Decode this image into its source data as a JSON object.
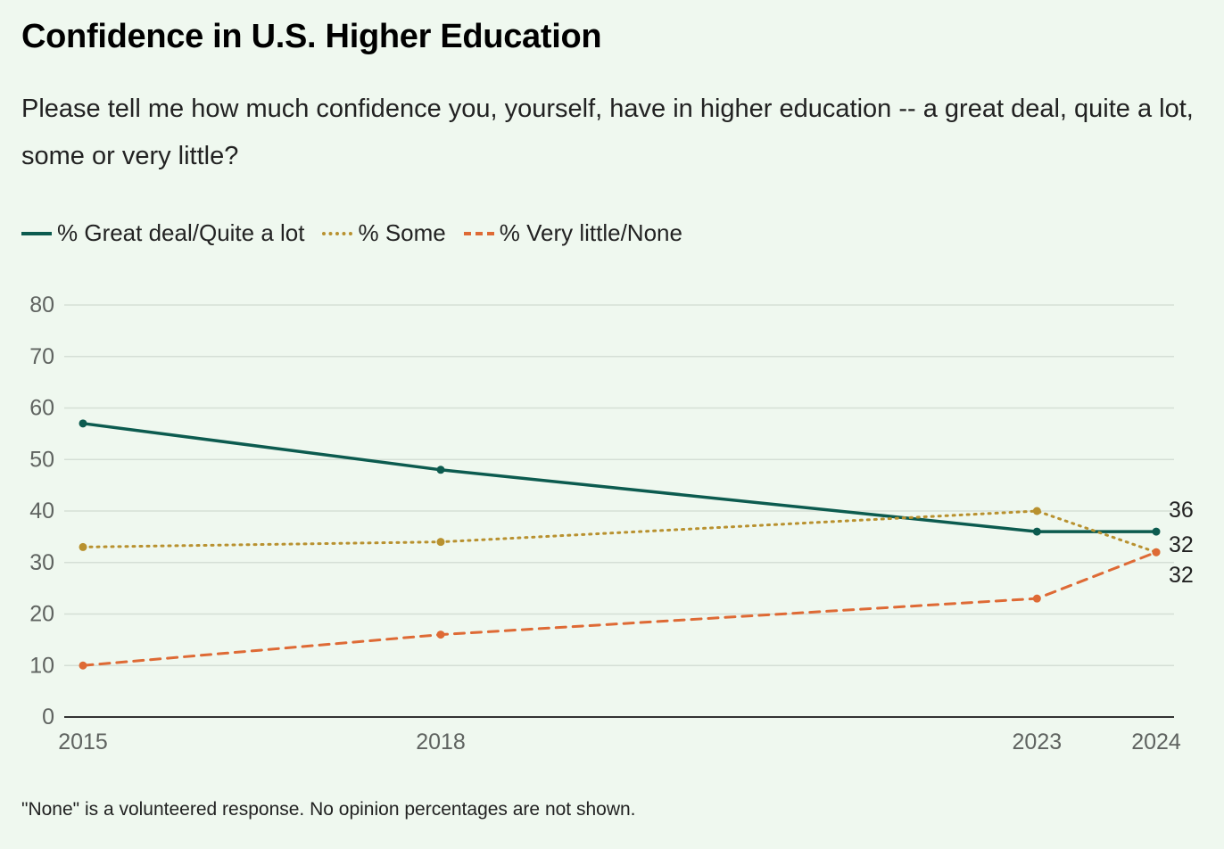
{
  "title": "Confidence in U.S. Higher Education",
  "subtitle": "Please tell me how much confidence you, yourself, have in higher education -- a great deal, quite a lot, some or very little?",
  "note": "\"None\" is a volunteered response. No opinion percentages are not shown.",
  "legend": [
    {
      "label": "% Great deal/Quite a lot",
      "style": "solid",
      "color": "#0c5b4f"
    },
    {
      "label": "% Some",
      "style": "dotted",
      "color": "#b8912f"
    },
    {
      "label": "% Very little/None",
      "style": "dashed",
      "color": "#de6a35"
    }
  ],
  "chart_data": {
    "type": "line",
    "title": "Confidence in U.S. Higher Education",
    "x": [
      2015,
      2018,
      2023,
      2024
    ],
    "x_tick_labels": [
      "2015",
      "2018",
      "2023",
      "2024"
    ],
    "xlim": [
      2015,
      2024
    ],
    "ylim": [
      0,
      80
    ],
    "y_ticks": [
      0,
      10,
      20,
      30,
      40,
      50,
      60,
      70,
      80
    ],
    "grid": true,
    "legend_position": "top-left",
    "series": [
      {
        "name": "% Great deal/Quite a lot",
        "values": [
          57,
          48,
          36,
          36
        ],
        "color": "#0c5b4f",
        "style": "solid",
        "end_label": "36"
      },
      {
        "name": "% Some",
        "values": [
          33,
          34,
          40,
          32
        ],
        "color": "#b8912f",
        "style": "dotted",
        "end_label": "32"
      },
      {
        "name": "% Very little/None",
        "values": [
          10,
          16,
          23,
          32
        ],
        "color": "#de6a35",
        "style": "dashed",
        "end_label": "32"
      }
    ]
  }
}
